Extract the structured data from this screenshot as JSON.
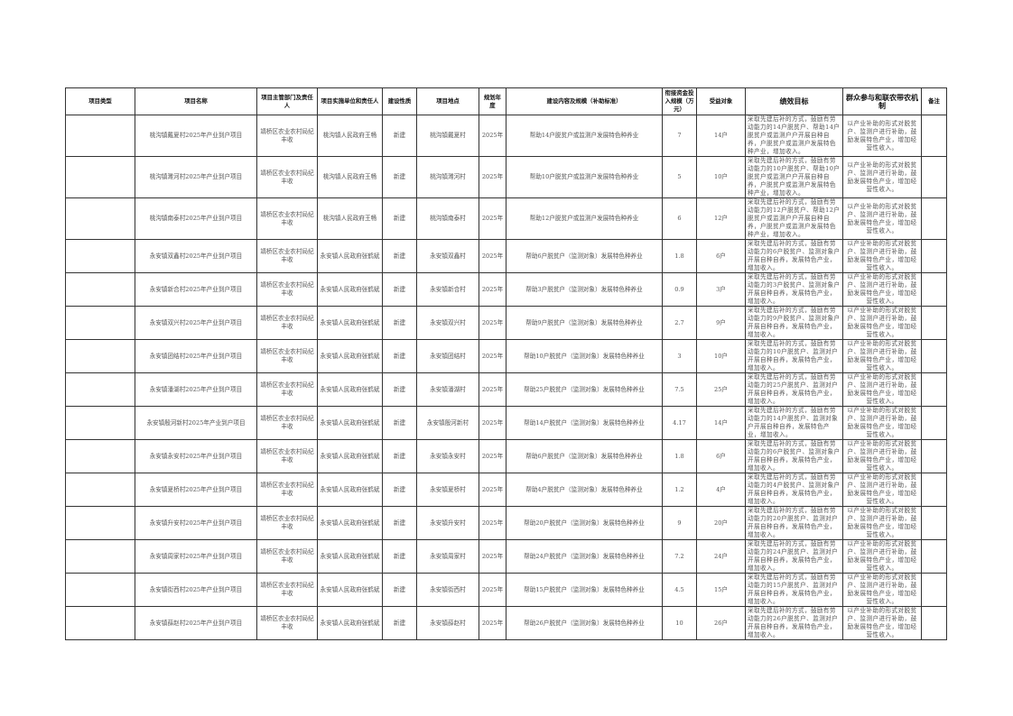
{
  "headers": [
    "项目类型",
    "项目名称",
    "项目主管部门及责任人",
    "项目实施单位和责任人",
    "建设性质",
    "项目地点",
    "规划年度",
    "建设内容及规模（补助标准）",
    "衔接资金投入规模（万元）",
    "受益对象",
    "绩效目标",
    "群众参与和联农带农机制",
    "备注"
  ],
  "rows": [
    {
      "type": "",
      "name": "桃沟镇戴夏村2025年产业到户项目",
      "dept": "靖桥区农业农村局纪丰收",
      "unit": "桃沟镇人民政府王畅",
      "nature": "新建",
      "place": "桃沟镇戴夏村",
      "year": "2025年",
      "content": "帮助14户脱贫户或监测户发展特色种养业",
      "fund": "7",
      "benef": "14户",
      "perf": "采取先建后补的方式，鼓励有劳动能力的14户脱贫户、帮助14户脱贫户或监测户户开展自种自养，户脱贫户或监测户发展特色种产业，增加收入。",
      "mech": "以产业补助的形式对脱贫户、监测户进行补助，鼓励发展特色产业，增加经营性收入。",
      "note": ""
    },
    {
      "type": "",
      "name": "桃沟镇濉河村2025年产业到户项目",
      "dept": "靖桥区农业农村局纪丰收",
      "unit": "桃沟镇人民政府王畅",
      "nature": "新建",
      "place": "桃沟镇濉河村",
      "year": "2025年",
      "content": "帮助10户脱贫户或监测户发展特色种养业",
      "fund": "5",
      "benef": "10户",
      "perf": "采取先建后补的方式，鼓励有劳动能力的10户脱贫户、帮助10户脱贫户或监测户户开展自种自养，户脱贫户或监测户发展特色种产业，增加收入。",
      "mech": "以产业补助的形式对脱贫户、监测户进行补助，鼓励发展特色产业，增加经营性收入。",
      "note": ""
    },
    {
      "type": "",
      "name": "桃沟镇南泰村2025年产业到户项目",
      "dept": "靖桥区农业农村局纪丰收",
      "unit": "桃沟镇人民政府王畅",
      "nature": "新建",
      "place": "桃沟镇南泰村",
      "year": "2025年",
      "content": "帮助12户脱贫户或监测户发展特色种养业",
      "fund": "6",
      "benef": "12户",
      "perf": "采取先建后补的方式，鼓励有劳动能力的12户脱贫户、帮助12户脱贫户或监测户户开展自种自养，户脱贫户或监测户发展特色种产业，增加收入。",
      "mech": "以产业补助的形式对脱贫户、监测户进行补助，鼓励发展特色产业，增加经营性收入。",
      "note": ""
    },
    {
      "type": "",
      "name": "永安镇双鑫村2025年产业到户项目",
      "dept": "靖桥区农业农村局纪丰收",
      "unit": "永安镇人民政府张鹤斌",
      "nature": "新建",
      "place": "永安镇双鑫村",
      "year": "2025年",
      "content": "帮助6户脱贫户（监测对象）发展特色种养业",
      "fund": "1.8",
      "benef": "6户",
      "perf": "采取先建后补的方式，鼓励有劳动能力的6户脱贫户、监测对象户开展自种自养，发展特色产业，增加收入。",
      "mech": "以产业补助的形式对脱贫户、监测户进行补助，鼓励发展特色产业，增加经营性收入。",
      "note": ""
    },
    {
      "type": "",
      "name": "永安镇新合村2025年产业到户项目",
      "dept": "靖桥区农业农村局纪丰收",
      "unit": "永安镇人民政府张鹤斌",
      "nature": "新建",
      "place": "永安镇新合村",
      "year": "2025年",
      "content": "帮助3户脱贫户（监测对象）发展特色种养业",
      "fund": "0.9",
      "benef": "3户",
      "perf": "采取先建后补的方式，鼓励有劳动能力的3户脱贫户、监测对象户开展自种自养，发展特色产业，增加收入。",
      "mech": "以产业补助的形式对脱贫户、监测户进行补助，鼓励发展特色产业，增加经营性收入。",
      "note": ""
    },
    {
      "type": "",
      "name": "永安镇双兴村2025年产业到户项目",
      "dept": "靖桥区农业农村局纪丰收",
      "unit": "永安镇人民政府张鹤斌",
      "nature": "新建",
      "place": "永安镇双兴村",
      "year": "2025年",
      "content": "帮助9户脱贫户（监测对象）发展特色种养业",
      "fund": "2.7",
      "benef": "9户",
      "perf": "采取先建后补的方式，鼓励有劳动能力的9户脱贫户、监测对象户开展自种自养，发展特色产业，增加收入。",
      "mech": "以产业补助的形式对脱贫户、监测户进行补助，鼓励发展特色产业，增加经营性收入。",
      "note": ""
    },
    {
      "type": "",
      "name": "永安镇团结村2025年产业到户项目",
      "dept": "靖桥区农业农村局纪丰收",
      "unit": "永安镇人民政府张鹤斌",
      "nature": "新建",
      "place": "永安镇团结村",
      "year": "2025年",
      "content": "帮助10户脱贫户（监测对象）发展特色种养业",
      "fund": "3",
      "benef": "10户",
      "perf": "采取先建后补的方式，鼓励有劳动能力的10户脱贫户、监测对户开展自种自养，发展特色产业，增加收入。",
      "mech": "以产业补助的形式对脱贫户、监测户进行补助，鼓励发展特色产业，增加经营性收入。",
      "note": ""
    },
    {
      "type": "",
      "name": "永安镇潘湖村2025年产业到户项目",
      "dept": "靖桥区农业农村局纪丰收",
      "unit": "永安镇人民政府张鹤斌",
      "nature": "新建",
      "place": "永安镇潘湖村",
      "year": "2025年",
      "content": "帮助25户脱贫户（监测对象）发展特色种养业",
      "fund": "7.5",
      "benef": "25户",
      "perf": "采取先建后补的方式，鼓励有劳动能力的25户脱贫户、监测对户开展自种自养，发展特色产业，增加收入。",
      "mech": "以产业补助的形式对脱贫户、监测户进行补助，鼓励发展特色产业，增加经营性收入。",
      "note": ""
    },
    {
      "type": "",
      "name": "永安镇殷河新村2025年产业到户项目",
      "dept": "靖桥区农业农村局纪丰收",
      "unit": "永安镇人民政府张鹤斌",
      "nature": "新建",
      "place": "永安镇殷河新村",
      "year": "2025年",
      "content": "帮助14户脱贫户（监测对象）发展特色种养业",
      "fund": "4.17",
      "benef": "14户",
      "perf": "采取先建后补的方式，鼓励有劳动能力的14户脱贫户、监测对象户开展自种自养，发展特色产业，增加收入。",
      "mech": "以产业补助的形式对脱贫户、监测户进行补助，鼓励发展特色产业，增加经营性收入。",
      "note": ""
    },
    {
      "type": "",
      "name": "永安镇永安村2025年产业到户项目",
      "dept": "靖桥区农业农村局纪丰收",
      "unit": "永安镇人民政府张鹤斌",
      "nature": "新建",
      "place": "永安镇永安村",
      "year": "2025年",
      "content": "帮助6户脱贫户（监测对象）发展特色种养业",
      "fund": "1.8",
      "benef": "6户",
      "perf": "采取先建后补的方式，鼓励有劳动能力的6户脱贫户、监测对象户开展自种自养，发展特色产业，增加收入。",
      "mech": "以产业补助的形式对脱贫户、监测户进行补助，鼓励发展特色产业，增加经营性收入。",
      "note": ""
    },
    {
      "type": "",
      "name": "永安镇夏桥村2025年产业到户项目",
      "dept": "靖桥区农业农村局纪丰收",
      "unit": "永安镇人民政府张鹤斌",
      "nature": "新建",
      "place": "永安镇夏桥村",
      "year": "2025年",
      "content": "帮助4户脱贫户（监测对象）发展特色种养业",
      "fund": "1.2",
      "benef": "4户",
      "perf": "采取先建后补的方式，鼓励有劳动能力的4户脱贫户、监测对象户开展自种自养，发展特色产业，增加收入。",
      "mech": "以产业补助的形式对脱贫户、监测户进行补助，鼓励发展特色产业，增加经营性收入。",
      "note": ""
    },
    {
      "type": "",
      "name": "永安镇升安村2025年产业到户项目",
      "dept": "靖桥区农业农村局纪丰收",
      "unit": "永安镇人民政府张鹤斌",
      "nature": "新建",
      "place": "永安镇升安村",
      "year": "2025年",
      "content": "帮助20户脱贫户（监测对象）发展特色种养业",
      "fund": "9",
      "benef": "20户",
      "perf": "采取先建后补的方式，鼓励有劳动能力的20户脱贫户、监测对户开展自种自养，发展特色产业，增加收入。",
      "mech": "以产业补助的形式对脱贫户、监测户进行补助，鼓励发展特色产业，增加经营性收入。",
      "note": ""
    },
    {
      "type": "",
      "name": "永安镇周家村2025年产业到户项目",
      "dept": "靖桥区农业农村局纪丰收",
      "unit": "永安镇人民政府张鹤斌",
      "nature": "新建",
      "place": "永安镇周家村",
      "year": "2025年",
      "content": "帮助24户脱贫户（监测对象）发展特色种养业",
      "fund": "7.2",
      "benef": "24户",
      "perf": "采取先建后补的方式，鼓励有劳动能力的24户脱贫户、监测对户开展自种自养，发展特色产业，增加收入。",
      "mech": "以产业补助的形式对脱贫户、监测户进行补助，鼓励发展特色产业，增加经营性收入。",
      "note": ""
    },
    {
      "type": "",
      "name": "永安镇街西村2025年产业到户项目",
      "dept": "靖桥区农业农村局纪丰收",
      "unit": "永安镇人民政府张鹤斌",
      "nature": "新建",
      "place": "永安镇街西村",
      "year": "2025年",
      "content": "帮助15户脱贫户（监测对象）发展特色种养业",
      "fund": "4.5",
      "benef": "15户",
      "perf": "采取先建后补的方式，鼓励有劳动能力的15户脱贫户、监测对户开展自种自养，发展特色产业，增加收入。",
      "mech": "以产业补助的形式对脱贫户、监测户进行补助，鼓励发展特色产业，增加经营性收入。",
      "note": ""
    },
    {
      "type": "",
      "name": "永安镇薛赵村2025年产业到户项目",
      "dept": "靖桥区农业农村局纪丰收",
      "unit": "永安镇人民政府张鹤斌",
      "nature": "新建",
      "place": "永安镇薛赵村",
      "year": "2025年",
      "content": "帮助26户脱贫户（监测对象）发展特色种养业",
      "fund": "10",
      "benef": "26户",
      "perf": "采取先建后补的方式，鼓励有劳动能力的26户脱贫户、监测对户开展自种自养，发展特色产业，增加收入。",
      "mech": "以产业补助的形式对脱贫户、监测户进行补助，鼓励发展特色产业，增加经营性收入。",
      "note": ""
    }
  ]
}
